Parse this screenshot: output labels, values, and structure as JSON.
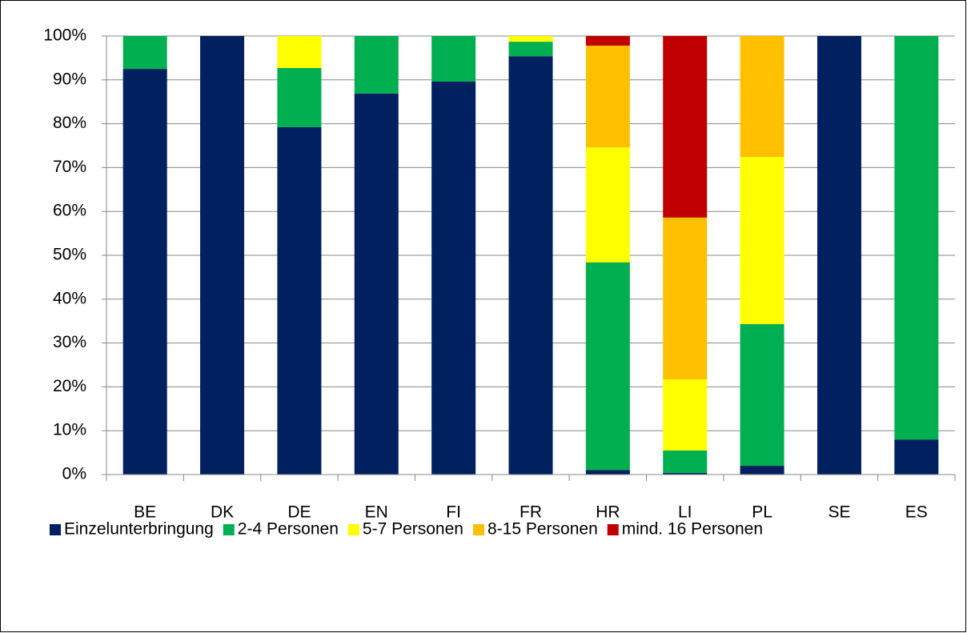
{
  "chart_data": {
    "type": "stacked_bar",
    "categories": [
      "BE",
      "DK",
      "DE",
      "EN",
      "FI",
      "FR",
      "HR",
      "LI",
      "PL",
      "SE",
      "ES"
    ],
    "series": [
      {
        "name": "Einzelunterbringung",
        "color": "#002060",
        "values": [
          92.5,
          100,
          79.2,
          86.9,
          89.6,
          95.4,
          1,
          0.4,
          2,
          100,
          8
        ]
      },
      {
        "name": "2-4 Personen",
        "color": "#00b050",
        "values": [
          7.5,
          0,
          13.5,
          13.1,
          10.4,
          3.3,
          47.4,
          5.1,
          32.3,
          0,
          92
        ]
      },
      {
        "name": "5-7 Personen",
        "color": "#ffff00",
        "values": [
          0,
          0,
          7.3,
          0,
          0,
          1.3,
          26.2,
          16.2,
          38.1,
          0,
          0
        ]
      },
      {
        "name": "8-15 Personen",
        "color": "#ffc000",
        "values": [
          0,
          0,
          0,
          0,
          0,
          0,
          23.2,
          36.9,
          27.6,
          0,
          0
        ]
      },
      {
        "name": "mind. 16 Personen",
        "color": "#c00000",
        "values": [
          0,
          0,
          0,
          0,
          0,
          0,
          2.2,
          41.4,
          0,
          0,
          0
        ]
      }
    ],
    "ylim": [
      0,
      100
    ],
    "yticks": [
      {
        "value": 0,
        "label": "0%"
      },
      {
        "value": 10,
        "label": "10%"
      },
      {
        "value": 20,
        "label": "20%"
      },
      {
        "value": 30,
        "label": "30%"
      },
      {
        "value": 40,
        "label": "40%"
      },
      {
        "value": 50,
        "label": "50%"
      },
      {
        "value": 60,
        "label": "60%"
      },
      {
        "value": 70,
        "label": "70%"
      },
      {
        "value": 80,
        "label": "80%"
      },
      {
        "value": 90,
        "label": "90%"
      },
      {
        "value": 100,
        "label": "100%"
      }
    ],
    "grid": true,
    "legend": "bottom"
  }
}
